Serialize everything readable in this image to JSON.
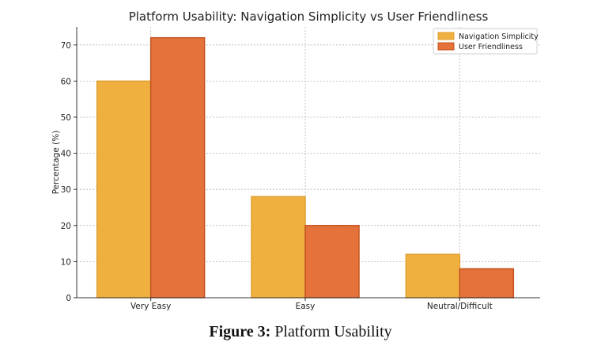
{
  "chart_data": {
    "type": "bar",
    "title": "Platform Usability: Navigation Simplicity vs User Friendliness",
    "xlabel": "",
    "ylabel": "Percentage (%)",
    "categories": [
      "Very Easy",
      "Easy",
      "Neutral/Difficult"
    ],
    "series": [
      {
        "name": "Navigation Simplicity",
        "values": [
          60,
          28,
          12
        ],
        "color": "#F0B040",
        "edge": "#E0A030"
      },
      {
        "name": "User Friendliness",
        "values": [
          72,
          20,
          8
        ],
        "color": "#E5723A",
        "edge": "#C4531F"
      }
    ],
    "ylim": [
      0,
      75
    ],
    "yticks": [
      0,
      10,
      20,
      30,
      40,
      50,
      60,
      70
    ],
    "grid": true,
    "legend_position": "top-right"
  },
  "caption": {
    "label": "Figure 3:",
    "text": " Platform Usability"
  }
}
